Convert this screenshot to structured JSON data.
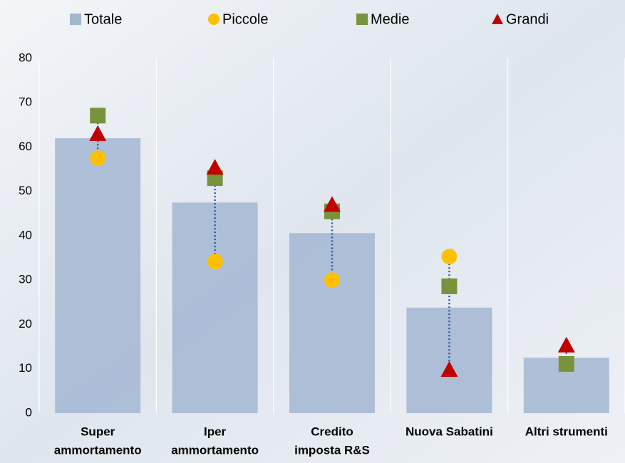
{
  "chart_data": {
    "type": "bar_dot",
    "categories": [
      [
        "Super",
        "ammortamento"
      ],
      [
        "Iper",
        "ammortamento"
      ],
      [
        "Credito",
        "imposta R&S"
      ],
      [
        "Nuova Sabatini"
      ],
      [
        "Altri strumenti"
      ]
    ],
    "series": [
      {
        "name": "Totale",
        "color": "#a3b6d2",
        "marker": "bar",
        "values": [
          62,
          47.5,
          40.6,
          23.8,
          12.5
        ]
      },
      {
        "name": "Piccole",
        "color": "#ffc000",
        "marker": "circle",
        "values": [
          57.5,
          34.2,
          30,
          35.3,
          11
        ]
      },
      {
        "name": "Medie",
        "color": "#77933c",
        "marker": "square",
        "values": [
          67.1,
          53,
          45.5,
          28.6,
          11.1
        ]
      },
      {
        "name": "Grandi",
        "color": "#c00000",
        "marker": "triangle",
        "values": [
          63,
          55.4,
          47,
          9.8,
          15.3
        ]
      }
    ],
    "ylim": [
      0,
      80
    ],
    "yticks": [
      0,
      10,
      20,
      30,
      40,
      50,
      60,
      70,
      80
    ],
    "connector_color": "#2f5597"
  }
}
